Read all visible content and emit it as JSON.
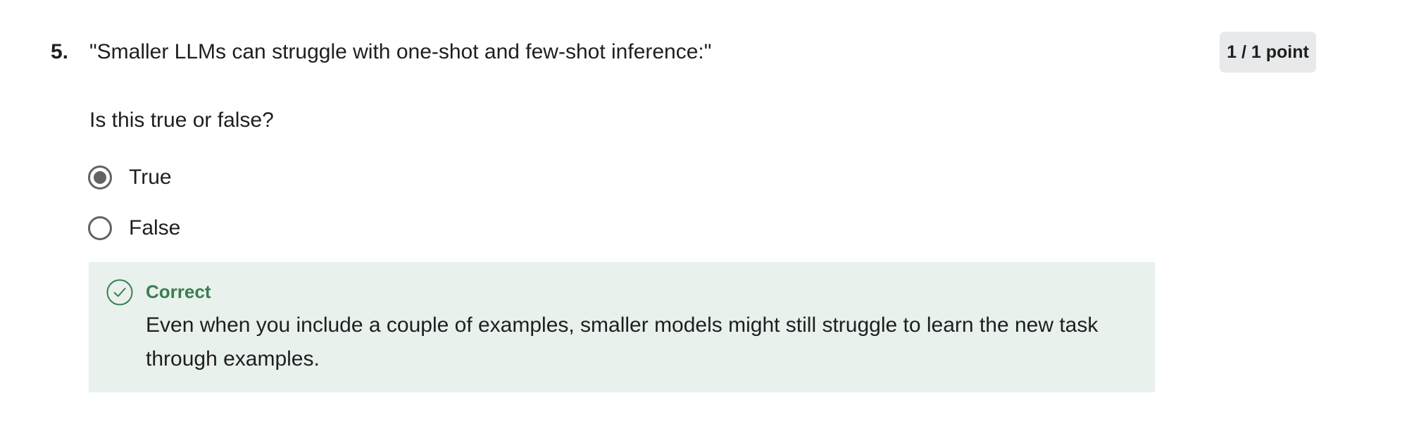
{
  "question": {
    "number": "5.",
    "prompt": "\"Smaller LLMs can struggle with one-shot and few-shot inference:\"",
    "points": "1 / 1 point",
    "subprompt": "Is this true or false?",
    "options": [
      {
        "label": "True",
        "selected": true
      },
      {
        "label": "False",
        "selected": false
      }
    ]
  },
  "feedback": {
    "status": "Correct",
    "icon": "check-circle-icon",
    "color": "#3a7d52",
    "background": "#e8f1ec",
    "text": "Even when you include a couple of examples, smaller models might still struggle to learn the new task through examples."
  }
}
